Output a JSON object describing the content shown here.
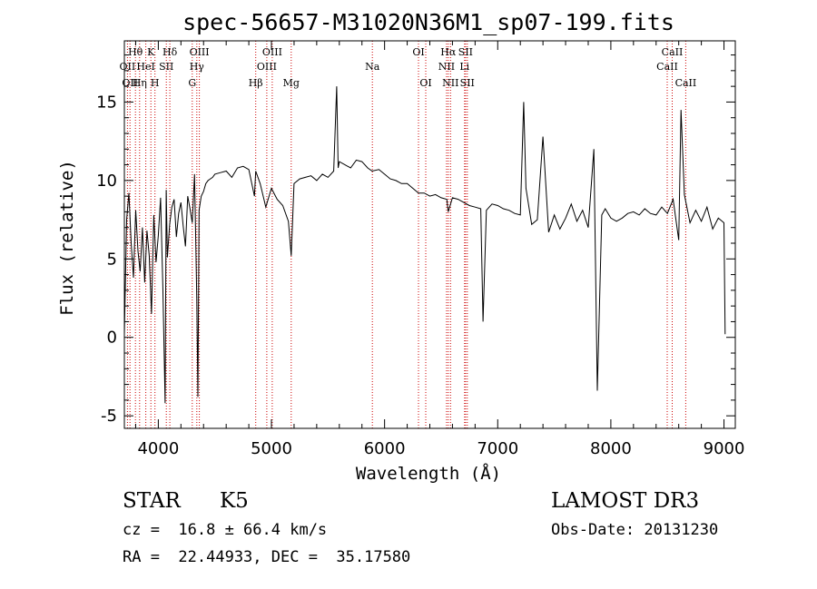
{
  "chart_data": {
    "type": "line",
    "title": "spec-56657-M31020N36M1_sp07-199.fits",
    "xlabel": "Wavelength (Å)",
    "ylabel": "Flux (relative)",
    "xlim": [
      3700,
      9100
    ],
    "ylim": [
      -5.8,
      18.9
    ],
    "xticks": [
      4000,
      5000,
      6000,
      7000,
      8000,
      9000
    ],
    "yticks": [
      -5,
      0,
      5,
      10,
      15
    ],
    "grid": false,
    "series": [
      {
        "name": "spectrum",
        "x": [
          3700,
          3720,
          3740,
          3760,
          3780,
          3800,
          3820,
          3840,
          3860,
          3880,
          3900,
          3920,
          3940,
          3960,
          3980,
          4000,
          4020,
          4040,
          4060,
          4070,
          4080,
          4100,
          4120,
          4140,
          4160,
          4180,
          4200,
          4220,
          4240,
          4260,
          4280,
          4300,
          4320,
          4340,
          4350,
          4360,
          4380,
          4400,
          4420,
          4440,
          4460,
          4480,
          4500,
          4550,
          4600,
          4650,
          4700,
          4750,
          4800,
          4850,
          4861,
          4900,
          4950,
          5000,
          5050,
          5100,
          5150,
          5175,
          5200,
          5250,
          5300,
          5350,
          5400,
          5450,
          5500,
          5550,
          5577,
          5590,
          5600,
          5650,
          5700,
          5750,
          5800,
          5850,
          5890,
          5950,
          6000,
          6050,
          6100,
          6150,
          6200,
          6250,
          6300,
          6350,
          6400,
          6450,
          6500,
          6550,
          6563,
          6600,
          6650,
          6700,
          6750,
          6800,
          6850,
          6870,
          6900,
          6950,
          7000,
          7050,
          7100,
          7150,
          7200,
          7230,
          7250,
          7300,
          7350,
          7400,
          7450,
          7500,
          7550,
          7600,
          7650,
          7700,
          7750,
          7800,
          7850,
          7880,
          7920,
          7950,
          8000,
          8050,
          8100,
          8150,
          8200,
          8250,
          8300,
          8350,
          8400,
          8450,
          8500,
          8550,
          8600,
          8620,
          8650,
          8700,
          8750,
          8800,
          8850,
          8900,
          8950,
          9000,
          9010
        ],
        "y": [
          0.2,
          7.5,
          9.2,
          6.0,
          3.8,
          8.1,
          5.5,
          4.2,
          7.0,
          3.5,
          6.8,
          5.2,
          1.5,
          7.8,
          4.8,
          6.5,
          8.9,
          3.2,
          -4.2,
          9.4,
          5.1,
          7.2,
          8.3,
          8.8,
          6.4,
          7.9,
          8.6,
          7.1,
          5.8,
          9.0,
          8.2,
          7.3,
          10.4,
          2.4,
          -3.8,
          8.1,
          9.0,
          9.3,
          9.8,
          10.0,
          10.1,
          10.2,
          10.4,
          10.5,
          10.6,
          10.2,
          10.8,
          10.9,
          10.7,
          9.0,
          10.6,
          9.8,
          8.3,
          9.5,
          8.8,
          8.4,
          7.4,
          5.2,
          9.8,
          10.1,
          10.2,
          10.3,
          10.0,
          10.4,
          10.2,
          10.6,
          16.0,
          10.8,
          11.2,
          11.0,
          10.8,
          11.3,
          11.2,
          10.8,
          10.6,
          10.7,
          10.4,
          10.1,
          10.0,
          9.8,
          9.8,
          9.5,
          9.2,
          9.2,
          9.0,
          9.1,
          8.9,
          8.8,
          8.0,
          8.9,
          8.8,
          8.6,
          8.4,
          8.3,
          8.2,
          1.0,
          8.1,
          8.5,
          8.4,
          8.2,
          8.1,
          7.9,
          7.8,
          15.0,
          9.5,
          7.2,
          7.5,
          12.8,
          6.7,
          7.8,
          6.9,
          7.6,
          8.5,
          7.4,
          8.1,
          7.0,
          12.0,
          -3.4,
          7.8,
          8.2,
          7.6,
          7.4,
          7.6,
          7.9,
          8.0,
          7.8,
          8.2,
          7.9,
          7.8,
          8.3,
          7.9,
          8.8,
          6.2,
          14.5,
          9.1,
          7.3,
          8.1,
          7.4,
          8.3,
          6.9,
          7.6,
          7.3,
          0.2
        ]
      }
    ],
    "spectral_lines": [
      {
        "wave": 3727,
        "label": "OII",
        "row": 2
      },
      {
        "wave": 3750,
        "label": "OII",
        "row": 3
      },
      {
        "wave": 3798,
        "label": "Hθ",
        "row": 1
      },
      {
        "wave": 3835,
        "label": "Hη",
        "row": 3
      },
      {
        "wave": 3889,
        "label": "HeI",
        "row": 2
      },
      {
        "wave": 3934,
        "label": "K",
        "row": 1
      },
      {
        "wave": 3970,
        "label": "H",
        "row": 3
      },
      {
        "wave": 4071,
        "label": "SII",
        "row": 2
      },
      {
        "wave": 4102,
        "label": "Hδ",
        "row": 1
      },
      {
        "wave": 4300,
        "label": "G",
        "row": 3
      },
      {
        "wave": 4340,
        "label": "Hγ",
        "row": 2
      },
      {
        "wave": 4363,
        "label": "OIII",
        "row": 1
      },
      {
        "wave": 4861,
        "label": "Hβ",
        "row": 3
      },
      {
        "wave": 4959,
        "label": "OIII",
        "row": 2
      },
      {
        "wave": 5007,
        "label": "OIII",
        "row": 1
      },
      {
        "wave": 5175,
        "label": "Mg",
        "row": 3
      },
      {
        "wave": 5892,
        "label": "Na",
        "row": 2
      },
      {
        "wave": 6300,
        "label": "OI",
        "row": 1
      },
      {
        "wave": 6364,
        "label": "OI",
        "row": 3
      },
      {
        "wave": 6548,
        "label": "NII",
        "row": 2
      },
      {
        "wave": 6563,
        "label": "Hα",
        "row": 1
      },
      {
        "wave": 6583,
        "label": "NII",
        "row": 3
      },
      {
        "wave": 6707,
        "label": "Li",
        "row": 2
      },
      {
        "wave": 6716,
        "label": "SII",
        "row": 1
      },
      {
        "wave": 6731,
        "label": "SII",
        "row": 3
      },
      {
        "wave": 8498,
        "label": "CaII",
        "row": 2
      },
      {
        "wave": 8542,
        "label": "CaII",
        "row": 1
      },
      {
        "wave": 8662,
        "label": "CaII",
        "row": 3
      }
    ]
  },
  "info": {
    "object_class": "STAR",
    "subclass": "K5",
    "survey": "LAMOST DR3",
    "redshift_line": "cz =  16.8 ± 66.4 km/s",
    "obs_date_line": "Obs-Date: 20131230",
    "coords_line": "RA =  22.44933, DEC =  35.17580"
  },
  "colors": {
    "spectrum": "#000000",
    "line_marker": "#cc0000",
    "axes": "#000000"
  }
}
